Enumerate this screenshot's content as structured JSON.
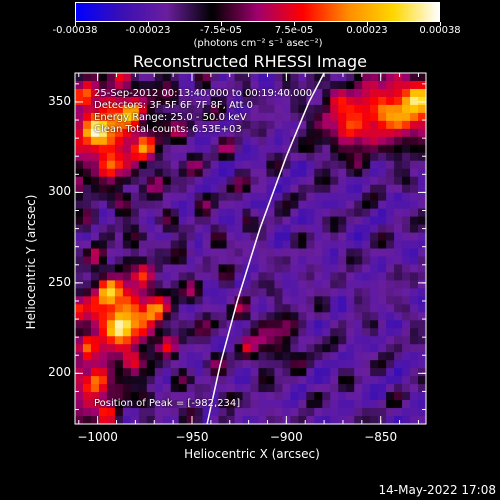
{
  "colorbar": {
    "ticks": [
      "-0.00038",
      "-0.00023",
      "-7.5e-05",
      "7.5e-05",
      "0.00023",
      "0.00038"
    ],
    "unit": "(photons cm⁻² s⁻¹ asec⁻²)",
    "colors": [
      "#0000ff",
      "#3a0fb4",
      "#6a1e9e",
      "#000000",
      "#a0006e",
      "#ff0000",
      "#ff8c00",
      "#ffd700",
      "#ffffff"
    ]
  },
  "chart_data": {
    "type": "heatmap",
    "title": "Reconstructed RHESSI Image",
    "xlabel": "Heliocentric X (arcsec)",
    "ylabel": "Heliocentric Y (arcsec)",
    "xlim": [
      -1012,
      -826
    ],
    "ylim": [
      172,
      366
    ],
    "xticks": [
      -1000,
      -950,
      -900,
      -850
    ],
    "yticks": [
      200,
      250,
      300,
      350
    ],
    "xtick_labels": [
      "−1000",
      "−950",
      "−900",
      "−850"
    ],
    "ytick_labels": [
      "200",
      "250",
      "300",
      "350"
    ],
    "value_range": [
      -0.00038,
      0.00038
    ],
    "limb_curve": [
      [
        -942,
        172
      ],
      [
        -935,
        205
      ],
      [
        -926,
        240
      ],
      [
        -914,
        280
      ],
      [
        -900,
        320
      ],
      [
        -888,
        350
      ],
      [
        -880,
        366
      ]
    ],
    "annotations": [
      "25-Sep-2012 00:13:40.000 to 00:19:40.000",
      "Detectors: 3F 5F 6F 7F 8F, Att 0",
      "Energy Range: 25.0 - 50.0 keV",
      "Clean    Total counts: 6.53E+03"
    ],
    "peak_label": "Position of Peak = [-982,234]"
  },
  "timestamp": "14-May-2022 17:08"
}
